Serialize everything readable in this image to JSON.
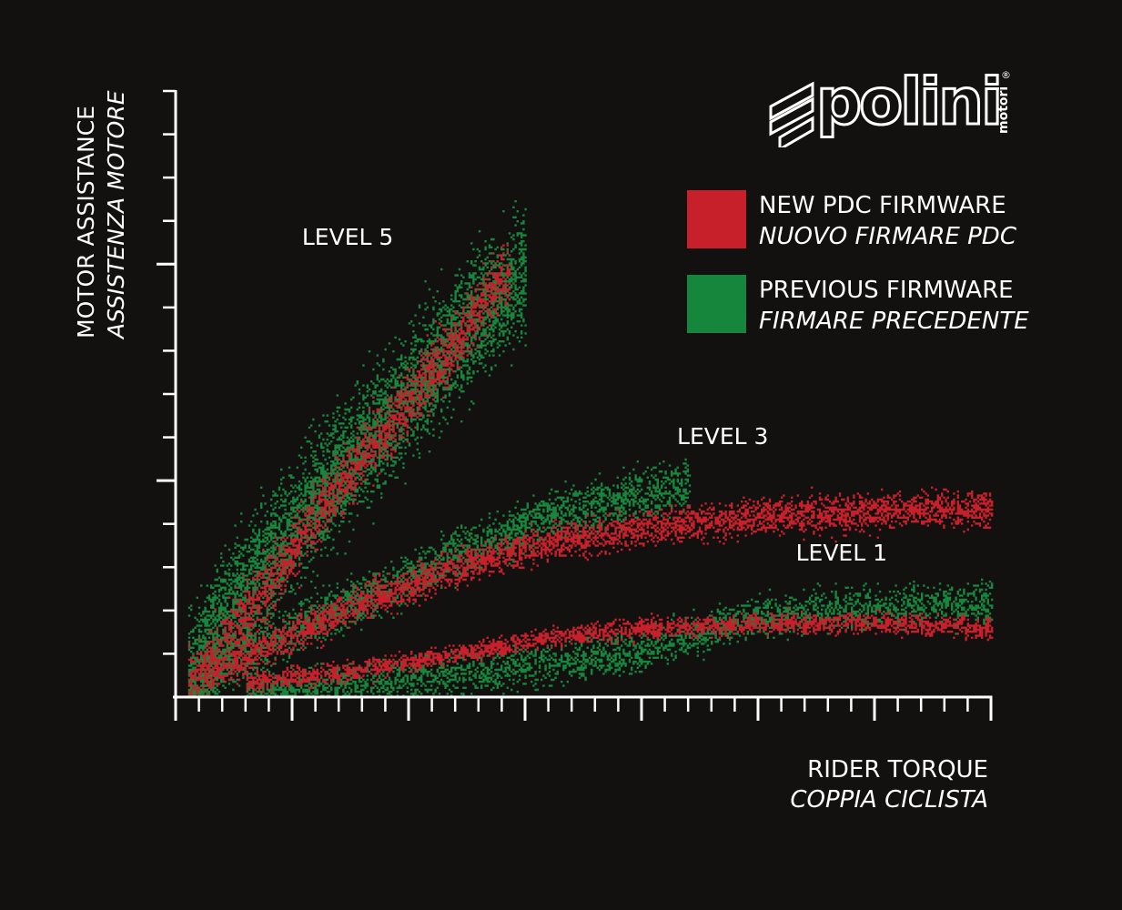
{
  "brand": {
    "logo_text": "polini",
    "logo_subtext": "motori",
    "registered_mark": "®",
    "logo_icon": "polini-stripes-logo-icon"
  },
  "colors": {
    "background": "#121110",
    "axis": "#ffffff",
    "new_firmware": "#c8202a",
    "previous_firmware": "#16863c"
  },
  "chart_data": {
    "type": "scatter",
    "title": "",
    "xlabel": [
      "RIDER TORQUE",
      "COPPIA CICLISTA"
    ],
    "ylabel": [
      "MOTOR ASSISTANCE",
      "ASSISTENZA MOTORE"
    ],
    "xlim": [
      0,
      35
    ],
    "ylim": [
      0,
      14
    ],
    "x_major_every": 5,
    "y_major_every": 5,
    "tick_labels_shown": false,
    "grid": false,
    "legend_position": "top-right",
    "legend": [
      {
        "name": "NEW PDC FIRMWARE",
        "name_it": "NUOVO FIRMARE PDC",
        "color": "#c8202a"
      },
      {
        "name": "PREVIOUS FIRMWARE",
        "name_it": "FIRMARE PRECEDENTE",
        "color": "#16863c"
      }
    ],
    "annotations": [
      {
        "text": "LEVEL 5",
        "x": 7.3,
        "y": 10.6
      },
      {
        "text": "LEVEL 3",
        "x": 23.4,
        "y": 6.0
      },
      {
        "text": "LEVEL 1",
        "x": 28.5,
        "y": 3.3
      }
    ],
    "series": [
      {
        "name": "PREVIOUS FIRMWARE - LEVEL 5",
        "color": "#16863c",
        "centerline": [
          [
            0.5,
            0.4
          ],
          [
            2,
            1.8
          ],
          [
            4,
            3.2
          ],
          [
            6,
            4.6
          ],
          [
            8,
            5.8
          ],
          [
            10,
            7.0
          ],
          [
            12,
            8.3
          ],
          [
            14,
            9.4
          ],
          [
            15,
            9.8
          ]
        ],
        "spread": 1.4,
        "points": 5200
      },
      {
        "name": "NEW PDC FIRMWARE - LEVEL 5",
        "color": "#c8202a",
        "centerline": [
          [
            0.5,
            0.3
          ],
          [
            2,
            1.2
          ],
          [
            4,
            2.6
          ],
          [
            6,
            4.2
          ],
          [
            8,
            5.6
          ],
          [
            10,
            6.9
          ],
          [
            12,
            8.2
          ],
          [
            13.5,
            9.4
          ],
          [
            14.3,
            9.9
          ]
        ],
        "spread": 0.7,
        "points": 2300
      },
      {
        "name": "PREVIOUS FIRMWARE - LEVEL 3",
        "color": "#16863c",
        "centerline": [
          [
            1,
            0.5
          ],
          [
            4,
            1.3
          ],
          [
            8,
            2.3
          ],
          [
            12,
            3.3
          ],
          [
            16,
            4.2
          ],
          [
            20,
            4.7
          ],
          [
            22,
            4.9
          ]
        ],
        "spread": 0.55,
        "points": 2600
      },
      {
        "name": "NEW PDC FIRMWARE - LEVEL 3",
        "color": "#c8202a",
        "centerline": [
          [
            1,
            0.5
          ],
          [
            4,
            1.2
          ],
          [
            8,
            2.2
          ],
          [
            12,
            3.0
          ],
          [
            16,
            3.6
          ],
          [
            20,
            3.9
          ],
          [
            25,
            4.2
          ],
          [
            30,
            4.3
          ],
          [
            35,
            4.4
          ]
        ],
        "spread": 0.4,
        "points": 4200
      },
      {
        "name": "PREVIOUS FIRMWARE - LEVEL 1",
        "color": "#16863c",
        "centerline": [
          [
            3,
            0.15
          ],
          [
            8,
            0.35
          ],
          [
            12,
            0.55
          ],
          [
            16,
            0.8
          ],
          [
            20,
            1.1
          ],
          [
            25,
            1.9
          ],
          [
            30,
            2.1
          ],
          [
            35,
            2.2
          ]
        ],
        "spread": 0.45,
        "points": 3000
      },
      {
        "name": "NEW PDC FIRMWARE - LEVEL 1",
        "color": "#c8202a",
        "centerline": [
          [
            3,
            0.35
          ],
          [
            8,
            0.65
          ],
          [
            12,
            1.0
          ],
          [
            16,
            1.4
          ],
          [
            20,
            1.6
          ],
          [
            25,
            1.7
          ],
          [
            30,
            1.75
          ],
          [
            35,
            1.6
          ]
        ],
        "spread": 0.22,
        "points": 2600
      }
    ]
  }
}
